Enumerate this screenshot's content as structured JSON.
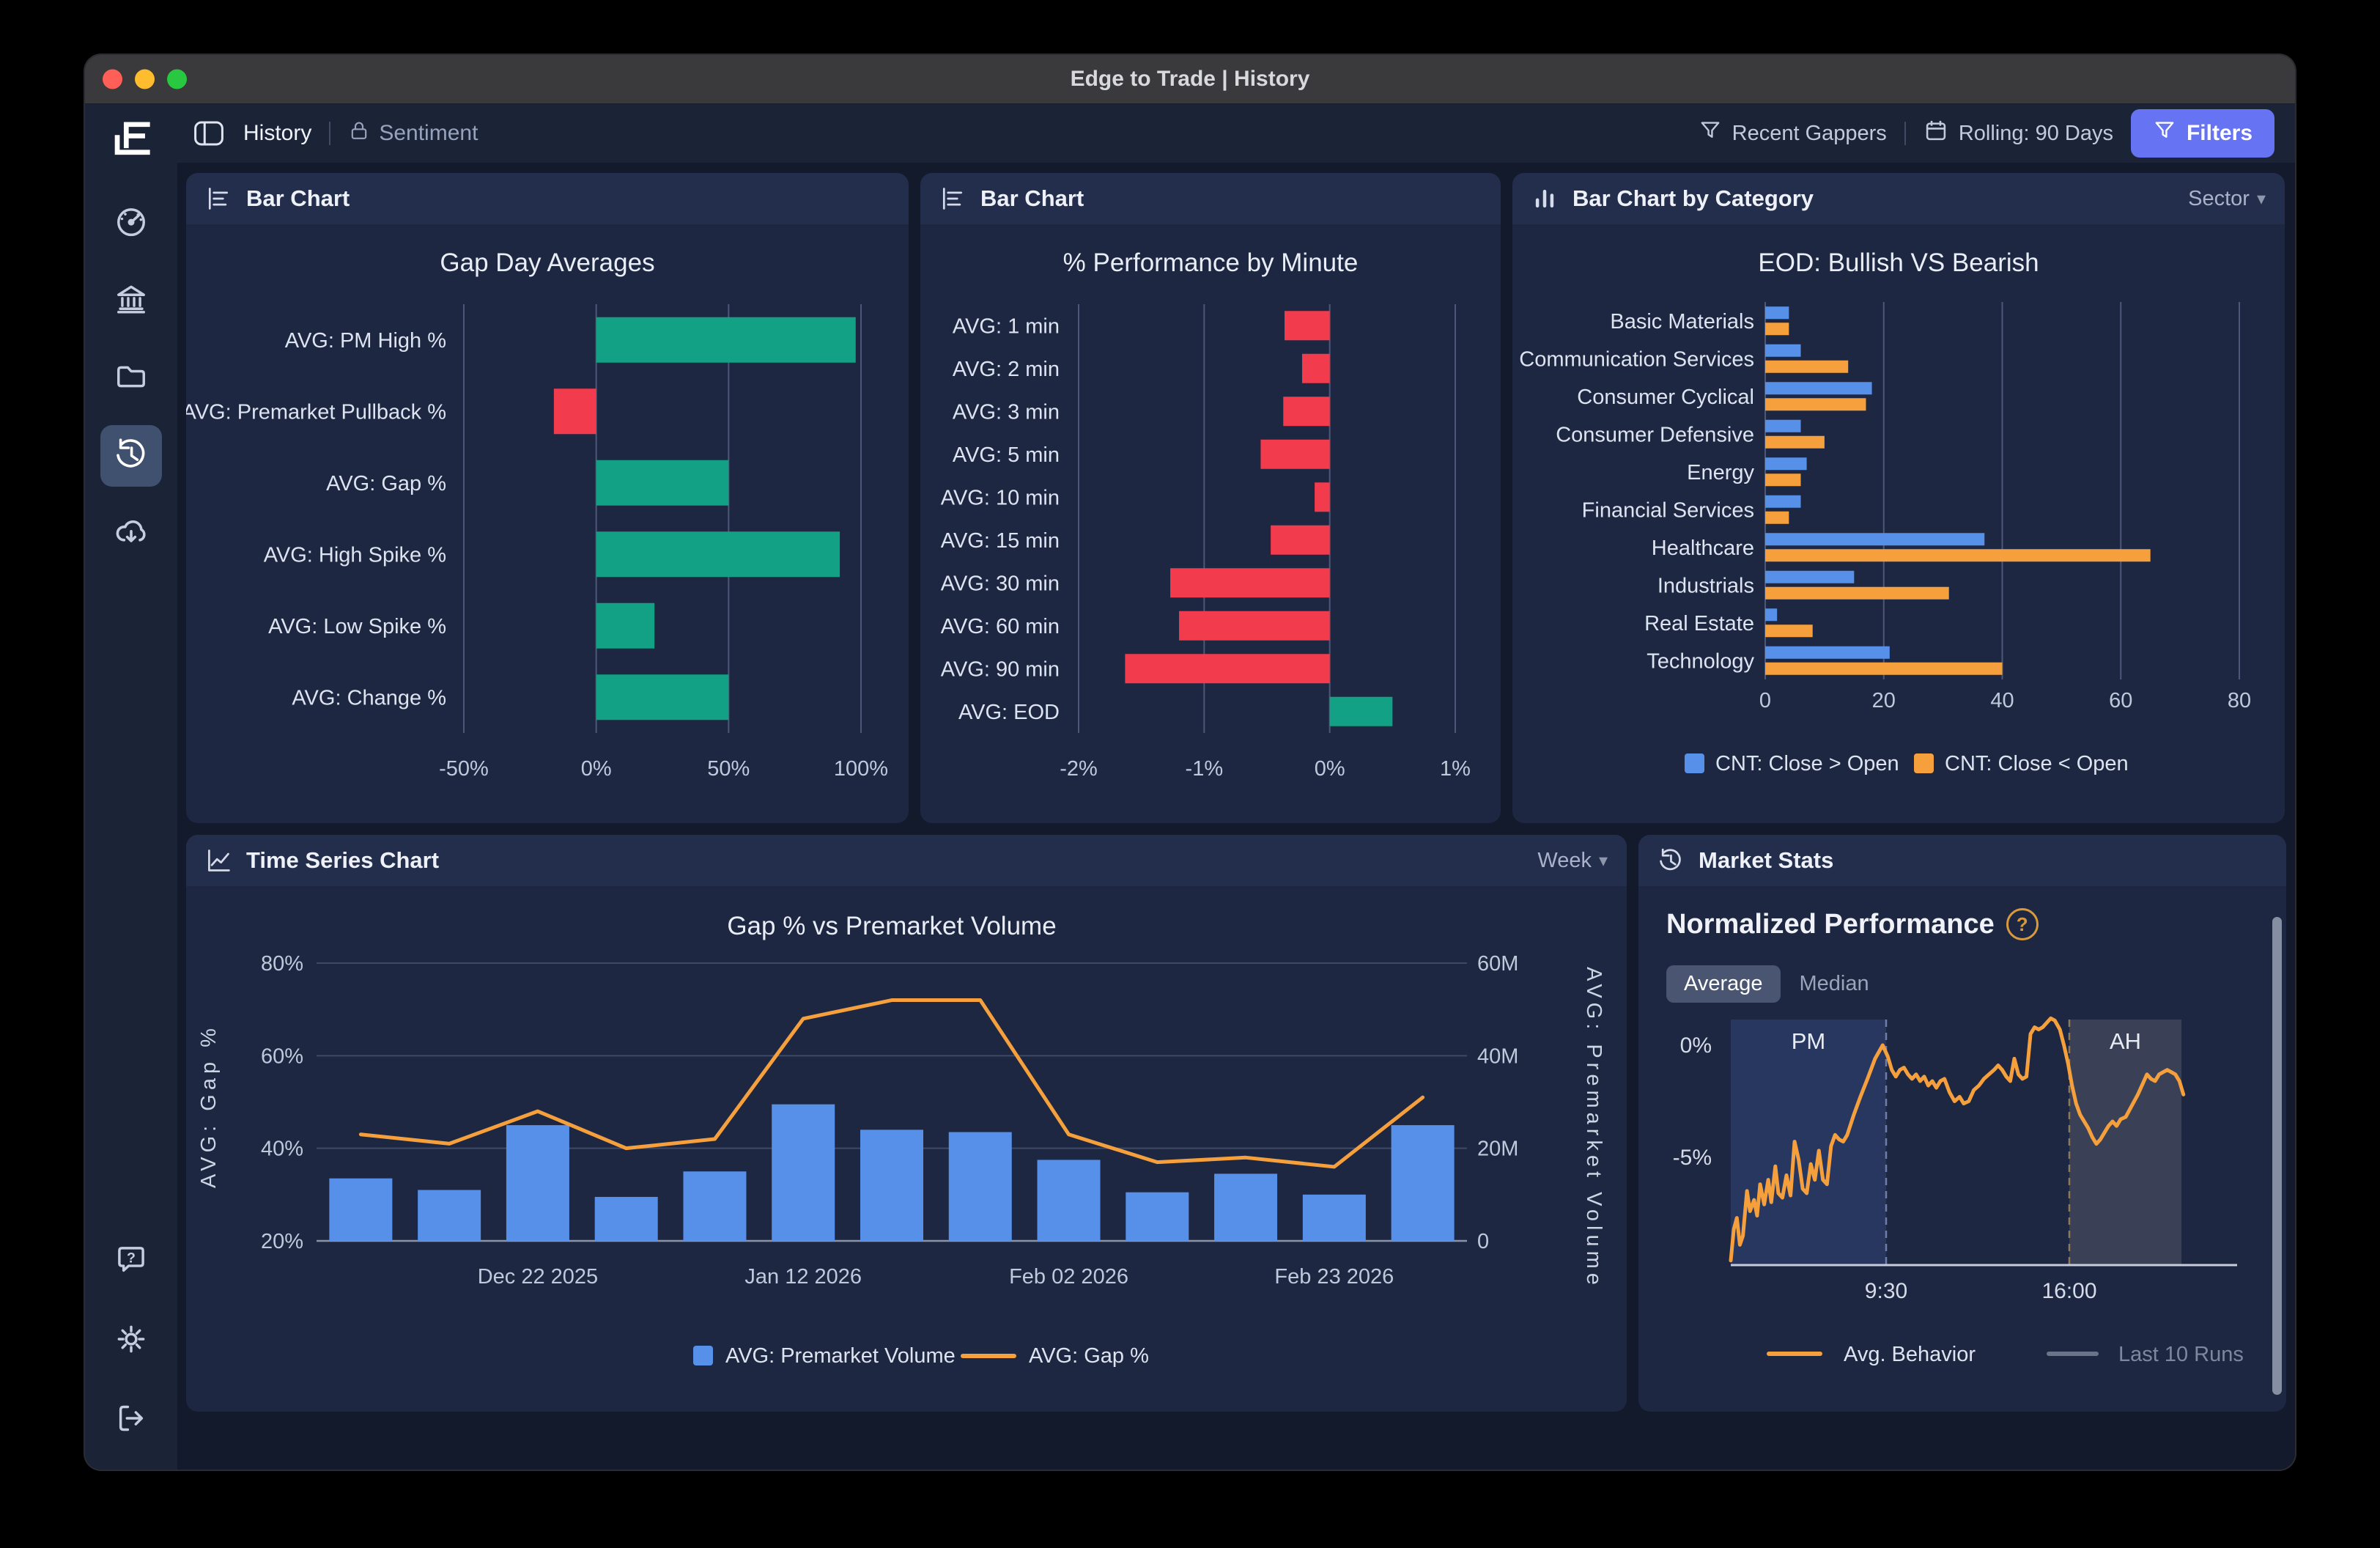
{
  "window": {
    "title": "Edge to Trade | History"
  },
  "topbar": {
    "history_tab": "History",
    "sentiment_tab": "Sentiment",
    "recent_gappers": "Recent Gappers",
    "rolling": "Rolling: 90 Days",
    "filters": "Filters"
  },
  "sidebar": {
    "items": [
      "dashboard-gauge",
      "bank",
      "folder",
      "history",
      "cloud-download"
    ],
    "active": "history",
    "footer": [
      "help",
      "settings",
      "logout"
    ]
  },
  "colors": {
    "green": "#12a184",
    "red": "#f23c4d",
    "blue": "#5690e9",
    "orange": "#f5a03d",
    "accent": "#6673f2",
    "gray_line": "#6a7388"
  },
  "chart_data": {
    "gap_day": {
      "type": "bar",
      "orientation": "horizontal",
      "panel_title": "Bar Chart",
      "title": "Gap Day Averages",
      "categories": [
        "AVG: PM High %",
        "AVG: Premarket Pullback %",
        "AVG: Gap %",
        "AVG: High Spike %",
        "AVG: Low Spike %",
        "AVG: Change %"
      ],
      "values": [
        98,
        -16,
        50,
        92,
        22,
        50
      ],
      "unit": "%",
      "ticks": [
        -50,
        0,
        50,
        100
      ],
      "tick_labels": [
        "-50%",
        "0%",
        "50%",
        "100%"
      ]
    },
    "perf_by_minute": {
      "type": "bar",
      "orientation": "horizontal",
      "panel_title": "Bar Chart",
      "title": "% Performance by Minute",
      "categories": [
        "AVG: 1 min",
        "AVG: 2 min",
        "AVG: 3 min",
        "AVG: 5 min",
        "AVG: 10 min",
        "AVG: 15 min",
        "AVG: 30 min",
        "AVG: 60 min",
        "AVG: 90 min",
        "AVG: EOD"
      ],
      "values": [
        -0.36,
        -0.22,
        -0.37,
        -0.55,
        -0.12,
        -0.47,
        -1.27,
        -1.2,
        -1.63,
        0.5
      ],
      "unit": "%",
      "ticks": [
        -2,
        -1,
        0,
        1
      ],
      "tick_labels": [
        "-2%",
        "-1%",
        "0%",
        "1%"
      ]
    },
    "bullish_bearish": {
      "type": "bar",
      "orientation": "horizontal",
      "grouped": true,
      "panel_title": "Bar Chart by Category",
      "dropdown": "Sector",
      "title": "EOD: Bullish VS Bearish",
      "categories": [
        "Basic Materials",
        "Communication Services",
        "Consumer Cyclical",
        "Consumer Defensive",
        "Energy",
        "Financial Services",
        "Healthcare",
        "Industrials",
        "Real Estate",
        "Technology"
      ],
      "series": [
        {
          "name": "CNT: Close > Open",
          "color": "blue",
          "values": [
            4,
            6,
            18,
            6,
            7,
            6,
            37,
            15,
            2,
            21
          ]
        },
        {
          "name": "CNT: Close < Open",
          "color": "orange",
          "values": [
            4,
            14,
            17,
            10,
            6,
            4,
            65,
            31,
            8,
            40
          ]
        }
      ],
      "ticks": [
        0,
        20,
        40,
        60,
        80
      ],
      "tick_labels": [
        "0",
        "20",
        "40",
        "60",
        "80"
      ]
    },
    "gap_vs_volume": {
      "type": "combo-bar-line",
      "panel_title": "Time Series Chart",
      "dropdown": "Week",
      "title": "Gap % vs Premarket Volume",
      "x_labels": [
        "",
        "",
        "Dec 22 2025",
        "",
        "",
        "Jan 12 2026",
        "",
        "",
        "Feb 02 2026",
        "",
        "",
        "Feb 23 2026",
        ""
      ],
      "bars": {
        "name": "AVG: Premarket Volume",
        "values_millions": [
          13.5,
          11,
          25,
          9.5,
          15,
          29.5,
          24,
          23.5,
          17.5,
          10.5,
          14.5,
          10,
          25
        ]
      },
      "line": {
        "name": "AVG: Gap %",
        "values_pct": [
          43,
          41,
          48,
          40,
          42,
          68,
          72,
          72,
          43,
          37,
          38,
          36,
          51
        ]
      },
      "left_axis": {
        "label": "AVG: Gap %",
        "tick_labels": [
          "20%",
          "40%",
          "60%",
          "80%"
        ],
        "range": [
          20,
          80
        ]
      },
      "right_axis": {
        "label": "AVG: Premarket Volume",
        "tick_labels": [
          "0",
          "20M",
          "40M",
          "60M"
        ],
        "range": [
          0,
          60
        ]
      }
    },
    "normalized_performance": {
      "type": "line",
      "panel_title": "Market Stats",
      "heading": "Normalized Performance",
      "toggle": {
        "options": [
          "Average",
          "Median"
        ],
        "active": "Average"
      },
      "y_ticks": [
        0,
        -5
      ],
      "y_tick_labels": [
        "0%",
        "-5%"
      ],
      "x_labels": [
        "9:30",
        "16:00"
      ],
      "regions": [
        {
          "label": "PM"
        },
        {
          "label": "AH"
        }
      ],
      "legend": [
        {
          "label": "Avg. Behavior",
          "color": "orange"
        },
        {
          "label": "Last 10 Runs",
          "color": "gray"
        }
      ],
      "series_pct": [
        [
          0.0,
          -9.6
        ],
        [
          0.006,
          -8.2
        ],
        [
          0.012,
          -7.7
        ],
        [
          0.018,
          -8.9
        ],
        [
          0.024,
          -8.5
        ],
        [
          0.032,
          -6.5
        ],
        [
          0.038,
          -7.4
        ],
        [
          0.046,
          -6.9
        ],
        [
          0.052,
          -7.6
        ],
        [
          0.058,
          -6.2
        ],
        [
          0.066,
          -7.1
        ],
        [
          0.074,
          -6.0
        ],
        [
          0.08,
          -7.0
        ],
        [
          0.088,
          -5.4
        ],
        [
          0.094,
          -6.6
        ],
        [
          0.102,
          -6.8
        ],
        [
          0.11,
          -5.8
        ],
        [
          0.118,
          -6.7
        ],
        [
          0.126,
          -4.3
        ],
        [
          0.134,
          -5.1
        ],
        [
          0.142,
          -6.4
        ],
        [
          0.15,
          -6.6
        ],
        [
          0.158,
          -5.3
        ],
        [
          0.166,
          -6.0
        ],
        [
          0.174,
          -4.7
        ],
        [
          0.182,
          -6.0
        ],
        [
          0.19,
          -6.2
        ],
        [
          0.198,
          -4.5
        ],
        [
          0.206,
          -4.0
        ],
        [
          0.214,
          -4.2
        ],
        [
          0.222,
          -4.3
        ],
        [
          0.23,
          -4.0
        ],
        [
          0.243,
          -3.1
        ],
        [
          0.256,
          -2.3
        ],
        [
          0.27,
          -1.5
        ],
        [
          0.285,
          -0.6
        ],
        [
          0.3,
          0.0
        ],
        [
          0.31,
          -0.5
        ],
        [
          0.318,
          -1.1
        ],
        [
          0.326,
          -1.4
        ],
        [
          0.334,
          -1.1
        ],
        [
          0.342,
          -1.0
        ],
        [
          0.35,
          -1.3
        ],
        [
          0.358,
          -1.5
        ],
        [
          0.366,
          -1.3
        ],
        [
          0.374,
          -1.6
        ],
        [
          0.382,
          -1.4
        ],
        [
          0.39,
          -1.8
        ],
        [
          0.398,
          -1.6
        ],
        [
          0.406,
          -1.9
        ],
        [
          0.414,
          -1.6
        ],
        [
          0.422,
          -1.5
        ],
        [
          0.432,
          -2.1
        ],
        [
          0.442,
          -2.5
        ],
        [
          0.452,
          -2.3
        ],
        [
          0.46,
          -2.6
        ],
        [
          0.47,
          -2.5
        ],
        [
          0.48,
          -2.0
        ],
        [
          0.49,
          -1.8
        ],
        [
          0.5,
          -1.5
        ],
        [
          0.51,
          -1.3
        ],
        [
          0.52,
          -1.1
        ],
        [
          0.528,
          -0.9
        ],
        [
          0.536,
          -1.1
        ],
        [
          0.544,
          -1.4
        ],
        [
          0.552,
          -1.6
        ],
        [
          0.56,
          -0.6
        ],
        [
          0.568,
          -1.3
        ],
        [
          0.576,
          -1.5
        ],
        [
          0.584,
          -1.4
        ],
        [
          0.592,
          0.5
        ],
        [
          0.6,
          0.8
        ],
        [
          0.608,
          0.7
        ],
        [
          0.616,
          0.8
        ],
        [
          0.624,
          1.0
        ],
        [
          0.632,
          1.2
        ],
        [
          0.64,
          1.1
        ],
        [
          0.65,
          0.7
        ],
        [
          0.658,
          0.0
        ],
        [
          0.666,
          -0.8
        ],
        [
          0.674,
          -1.8
        ],
        [
          0.682,
          -2.6
        ],
        [
          0.69,
          -3.1
        ],
        [
          0.698,
          -3.4
        ],
        [
          0.706,
          -3.7
        ],
        [
          0.714,
          -4.1
        ],
        [
          0.722,
          -4.4
        ],
        [
          0.73,
          -4.2
        ],
        [
          0.738,
          -3.9
        ],
        [
          0.746,
          -3.6
        ],
        [
          0.754,
          -3.4
        ],
        [
          0.762,
          -3.6
        ],
        [
          0.77,
          -3.3
        ],
        [
          0.78,
          -3.2
        ],
        [
          0.792,
          -2.7
        ],
        [
          0.804,
          -2.2
        ],
        [
          0.814,
          -1.7
        ],
        [
          0.822,
          -1.3
        ],
        [
          0.83,
          -1.5
        ],
        [
          0.838,
          -1.6
        ],
        [
          0.846,
          -1.3
        ],
        [
          0.854,
          -1.2
        ],
        [
          0.862,
          -1.1
        ],
        [
          0.87,
          -1.2
        ],
        [
          0.878,
          -1.3
        ],
        [
          0.886,
          -1.6
        ],
        [
          0.894,
          -2.2
        ]
      ]
    }
  }
}
